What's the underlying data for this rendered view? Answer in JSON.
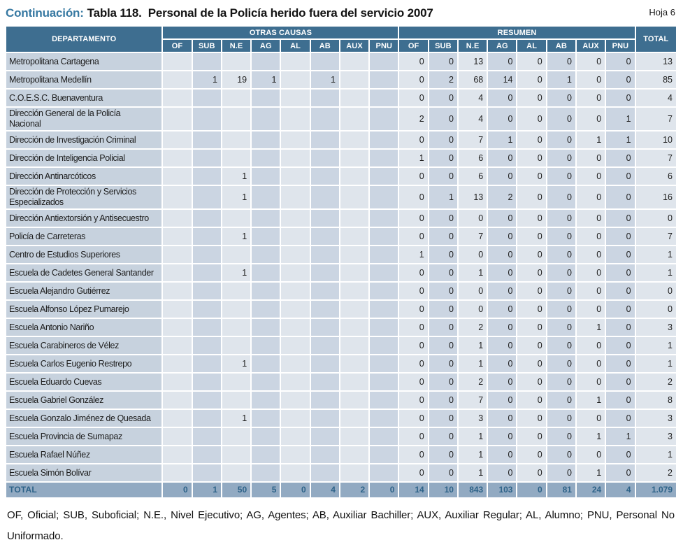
{
  "header": {
    "continuation_label": "Continuación:",
    "table_ref": "Tabla 118.",
    "title": "Personal de la Policía herido fuera del servicio 2007",
    "sheet_label": "Hoja 6"
  },
  "table": {
    "department_header": "DEPARTAMENTO",
    "group_headers": [
      "OTRAS CAUSAS",
      "RESUMEN"
    ],
    "sub_headers": [
      "OF",
      "SUB",
      "N.E",
      "AG",
      "AL",
      "AB",
      "AUX",
      "PNU"
    ],
    "total_header": "TOTAL",
    "rows": [
      {
        "department": "Metropolitana Cartagena",
        "otras_causas": [
          "",
          "",
          "",
          "",
          "",
          "",
          "",
          ""
        ],
        "resumen": [
          "0",
          "0",
          "13",
          "0",
          "0",
          "0",
          "0",
          "0"
        ],
        "total": "13"
      },
      {
        "department": "Metropolitana Medellín",
        "otras_causas": [
          "",
          "1",
          "19",
          "1",
          "",
          "1",
          "",
          ""
        ],
        "resumen": [
          "0",
          "2",
          "68",
          "14",
          "0",
          "1",
          "0",
          "0"
        ],
        "total": "85"
      },
      {
        "department": "C.O.E.S.C. Buenaventura",
        "otras_causas": [
          "",
          "",
          "",
          "",
          "",
          "",
          "",
          ""
        ],
        "resumen": [
          "0",
          "0",
          "4",
          "0",
          "0",
          "0",
          "0",
          "0"
        ],
        "total": "4"
      },
      {
        "department": "Dirección General de la Policía\nNacional",
        "otras_causas": [
          "",
          "",
          "",
          "",
          "",
          "",
          "",
          ""
        ],
        "resumen": [
          "2",
          "0",
          "4",
          "0",
          "0",
          "0",
          "0",
          "1"
        ],
        "total": "7"
      },
      {
        "department": "Dirección de Investigación Criminal",
        "otras_causas": [
          "",
          "",
          "",
          "",
          "",
          "",
          "",
          ""
        ],
        "resumen": [
          "0",
          "0",
          "7",
          "1",
          "0",
          "0",
          "1",
          "1"
        ],
        "total": "10"
      },
      {
        "department": "Dirección de Inteligencia Policial",
        "otras_causas": [
          "",
          "",
          "",
          "",
          "",
          "",
          "",
          ""
        ],
        "resumen": [
          "1",
          "0",
          "6",
          "0",
          "0",
          "0",
          "0",
          "0"
        ],
        "total": "7"
      },
      {
        "department": "Dirección Antinarcóticos",
        "otras_causas": [
          "",
          "",
          "1",
          "",
          "",
          "",
          "",
          ""
        ],
        "resumen": [
          "0",
          "0",
          "6",
          "0",
          "0",
          "0",
          "0",
          "0"
        ],
        "total": "6"
      },
      {
        "department": "Dirección de Protección y Servicios\nEspecializados",
        "otras_causas": [
          "",
          "",
          "1",
          "",
          "",
          "",
          "",
          ""
        ],
        "resumen": [
          "0",
          "1",
          "13",
          "2",
          "0",
          "0",
          "0",
          "0"
        ],
        "total": "16"
      },
      {
        "department": "Dirección Antiextorsión y Antisecuestro",
        "otras_causas": [
          "",
          "",
          "",
          "",
          "",
          "",
          "",
          ""
        ],
        "resumen": [
          "0",
          "0",
          "0",
          "0",
          "0",
          "0",
          "0",
          "0"
        ],
        "total": "0"
      },
      {
        "department": "Policía de Carreteras",
        "otras_causas": [
          "",
          "",
          "1",
          "",
          "",
          "",
          "",
          ""
        ],
        "resumen": [
          "0",
          "0",
          "7",
          "0",
          "0",
          "0",
          "0",
          "0"
        ],
        "total": "7"
      },
      {
        "department": "Centro de Estudios Superiores",
        "otras_causas": [
          "",
          "",
          "",
          "",
          "",
          "",
          "",
          ""
        ],
        "resumen": [
          "1",
          "0",
          "0",
          "0",
          "0",
          "0",
          "0",
          "0"
        ],
        "total": "1"
      },
      {
        "department": "Escuela de Cadetes General Santander",
        "otras_causas": [
          "",
          "",
          "1",
          "",
          "",
          "",
          "",
          ""
        ],
        "resumen": [
          "0",
          "0",
          "1",
          "0",
          "0",
          "0",
          "0",
          "0"
        ],
        "total": "1"
      },
      {
        "department": "Escuela Alejandro Gutiérrez",
        "otras_causas": [
          "",
          "",
          "",
          "",
          "",
          "",
          "",
          ""
        ],
        "resumen": [
          "0",
          "0",
          "0",
          "0",
          "0",
          "0",
          "0",
          "0"
        ],
        "total": "0"
      },
      {
        "department": "Escuela Alfonso López Pumarejo",
        "otras_causas": [
          "",
          "",
          "",
          "",
          "",
          "",
          "",
          ""
        ],
        "resumen": [
          "0",
          "0",
          "0",
          "0",
          "0",
          "0",
          "0",
          "0"
        ],
        "total": "0"
      },
      {
        "department": "Escuela Antonio Nariño",
        "otras_causas": [
          "",
          "",
          "",
          "",
          "",
          "",
          "",
          ""
        ],
        "resumen": [
          "0",
          "0",
          "2",
          "0",
          "0",
          "0",
          "1",
          "0"
        ],
        "total": "3"
      },
      {
        "department": "Escuela Carabineros de Vélez",
        "otras_causas": [
          "",
          "",
          "",
          "",
          "",
          "",
          "",
          ""
        ],
        "resumen": [
          "0",
          "0",
          "1",
          "0",
          "0",
          "0",
          "0",
          "0"
        ],
        "total": "1"
      },
      {
        "department": "Escuela Carlos Eugenio Restrepo",
        "otras_causas": [
          "",
          "",
          "1",
          "",
          "",
          "",
          "",
          ""
        ],
        "resumen": [
          "0",
          "0",
          "1",
          "0",
          "0",
          "0",
          "0",
          "0"
        ],
        "total": "1"
      },
      {
        "department": "Escuela Eduardo Cuevas",
        "otras_causas": [
          "",
          "",
          "",
          "",
          "",
          "",
          "",
          ""
        ],
        "resumen": [
          "0",
          "0",
          "2",
          "0",
          "0",
          "0",
          "0",
          "0"
        ],
        "total": "2"
      },
      {
        "department": "Escuela Gabriel González",
        "otras_causas": [
          "",
          "",
          "",
          "",
          "",
          "",
          "",
          ""
        ],
        "resumen": [
          "0",
          "0",
          "7",
          "0",
          "0",
          "0",
          "1",
          "0"
        ],
        "total": "8"
      },
      {
        "department": "Escuela Gonzalo Jiménez de Quesada",
        "otras_causas": [
          "",
          "",
          "1",
          "",
          "",
          "",
          "",
          ""
        ],
        "resumen": [
          "0",
          "0",
          "3",
          "0",
          "0",
          "0",
          "0",
          "0"
        ],
        "total": "3"
      },
      {
        "department": "Escuela Provincia de Sumapaz",
        "otras_causas": [
          "",
          "",
          "",
          "",
          "",
          "",
          "",
          ""
        ],
        "resumen": [
          "0",
          "0",
          "1",
          "0",
          "0",
          "0",
          "1",
          "1"
        ],
        "total": "3"
      },
      {
        "department": "Escuela Rafael Núñez",
        "otras_causas": [
          "",
          "",
          "",
          "",
          "",
          "",
          "",
          ""
        ],
        "resumen": [
          "0",
          "0",
          "1",
          "0",
          "0",
          "0",
          "0",
          "0"
        ],
        "total": "1"
      },
      {
        "department": "Escuela Simón Bolívar",
        "otras_causas": [
          "",
          "",
          "",
          "",
          "",
          "",
          "",
          ""
        ],
        "resumen": [
          "0",
          "0",
          "1",
          "0",
          "0",
          "0",
          "1",
          "0"
        ],
        "total": "2"
      }
    ],
    "total_row": {
      "label": "TOTAL",
      "otras_causas": [
        "0",
        "1",
        "50",
        "5",
        "0",
        "4",
        "2",
        "0"
      ],
      "resumen": [
        "14",
        "10",
        "843",
        "103",
        "0",
        "81",
        "24",
        "4"
      ],
      "total": "1.079"
    }
  },
  "footnote": "OF, Oficial; SUB, Suboficial; N.E., Nivel Ejecutivo; AG, Agentes; AB, Auxiliar Bachiller; AUX, Auxiliar Regular; AL, Alumno; PNU, Personal No Uniformado.",
  "colors": {
    "header_blue": "#3e6e90",
    "dept_cell": "#c7d2de",
    "cell_light": "#dfe5ec",
    "cell_dark": "#cbd5e2",
    "total_row_bg": "#92aac2",
    "total_row_text": "#2d6288",
    "title_accent": "#3779a2",
    "text_color": "#1a1a1a"
  }
}
